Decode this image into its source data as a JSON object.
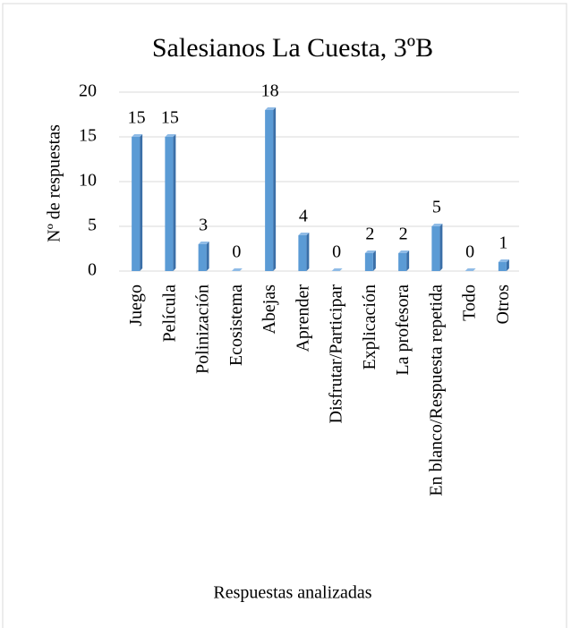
{
  "chart_data": {
    "type": "bar",
    "title": "Salesianos La Cuesta, 3ºB",
    "x_label": "Respuestas analizadas",
    "y_label": "Nº de respuestas",
    "categories": [
      "Juego",
      "Película",
      "Polinización",
      "Ecosistema",
      "Abejas",
      "Aprender",
      "Disfrutar/Participar",
      "Explicación",
      "La profesora",
      "En blanco/Respuesta repetida",
      "Todo",
      "Otros"
    ],
    "values": [
      15,
      15,
      3,
      0,
      18,
      4,
      0,
      2,
      2,
      5,
      0,
      1
    ],
    "color": "#5b9bd5",
    "ylim": [
      0,
      20
    ],
    "yticks": [
      0,
      5,
      10,
      15,
      20
    ],
    "grid": true
  }
}
